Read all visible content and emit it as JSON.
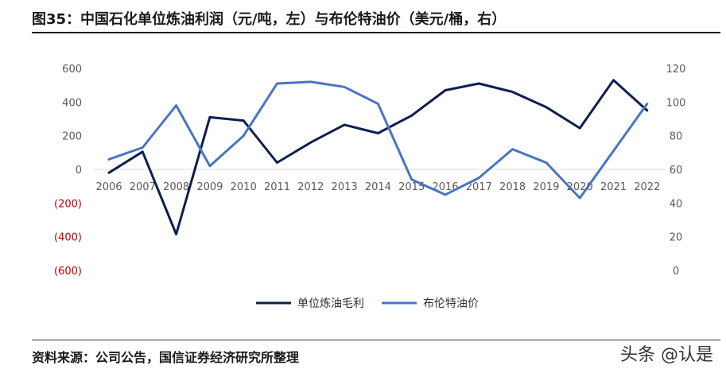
{
  "header": {
    "title": "图35：中国石化单位炼油利润（元/吨，左）与布伦特油价（美元/桶，右）"
  },
  "footer": {
    "source": "资料来源：公司公告，国信证券经济研究所整理",
    "watermark": "头条 @认是"
  },
  "colors": {
    "refining_margin": "#0d1f4d",
    "brent": "#4a74c4",
    "negative_tick": "#c00000"
  },
  "chart_data": {
    "type": "line",
    "categories": [
      "2006",
      "2007",
      "2008",
      "2009",
      "2010",
      "2011",
      "2012",
      "2013",
      "2014",
      "2015",
      "2016",
      "2017",
      "2018",
      "2019",
      "2020",
      "2021",
      "2022"
    ],
    "series": [
      {
        "name": "单位炼油毛利",
        "axis": "left",
        "values": [
          -20,
          105,
          -385,
          310,
          290,
          40,
          160,
          265,
          215,
          320,
          470,
          510,
          460,
          370,
          245,
          530,
          350
        ]
      },
      {
        "name": "布伦特油价",
        "axis": "right",
        "values": [
          66,
          73,
          98,
          62,
          80,
          111,
          112,
          109,
          99,
          54,
          45,
          55,
          72,
          64,
          43,
          71,
          99
        ]
      }
    ],
    "y_left": {
      "ylim": [
        -600,
        600
      ],
      "ticks": [
        "600",
        "400",
        "200",
        "0",
        "(200)",
        "(400)",
        "(600)"
      ]
    },
    "y_right": {
      "ylim": [
        0,
        120
      ],
      "ticks": [
        "120",
        "100",
        "80",
        "60",
        "40",
        "20",
        "0"
      ]
    },
    "legend_position": "bottom",
    "grid": false
  }
}
